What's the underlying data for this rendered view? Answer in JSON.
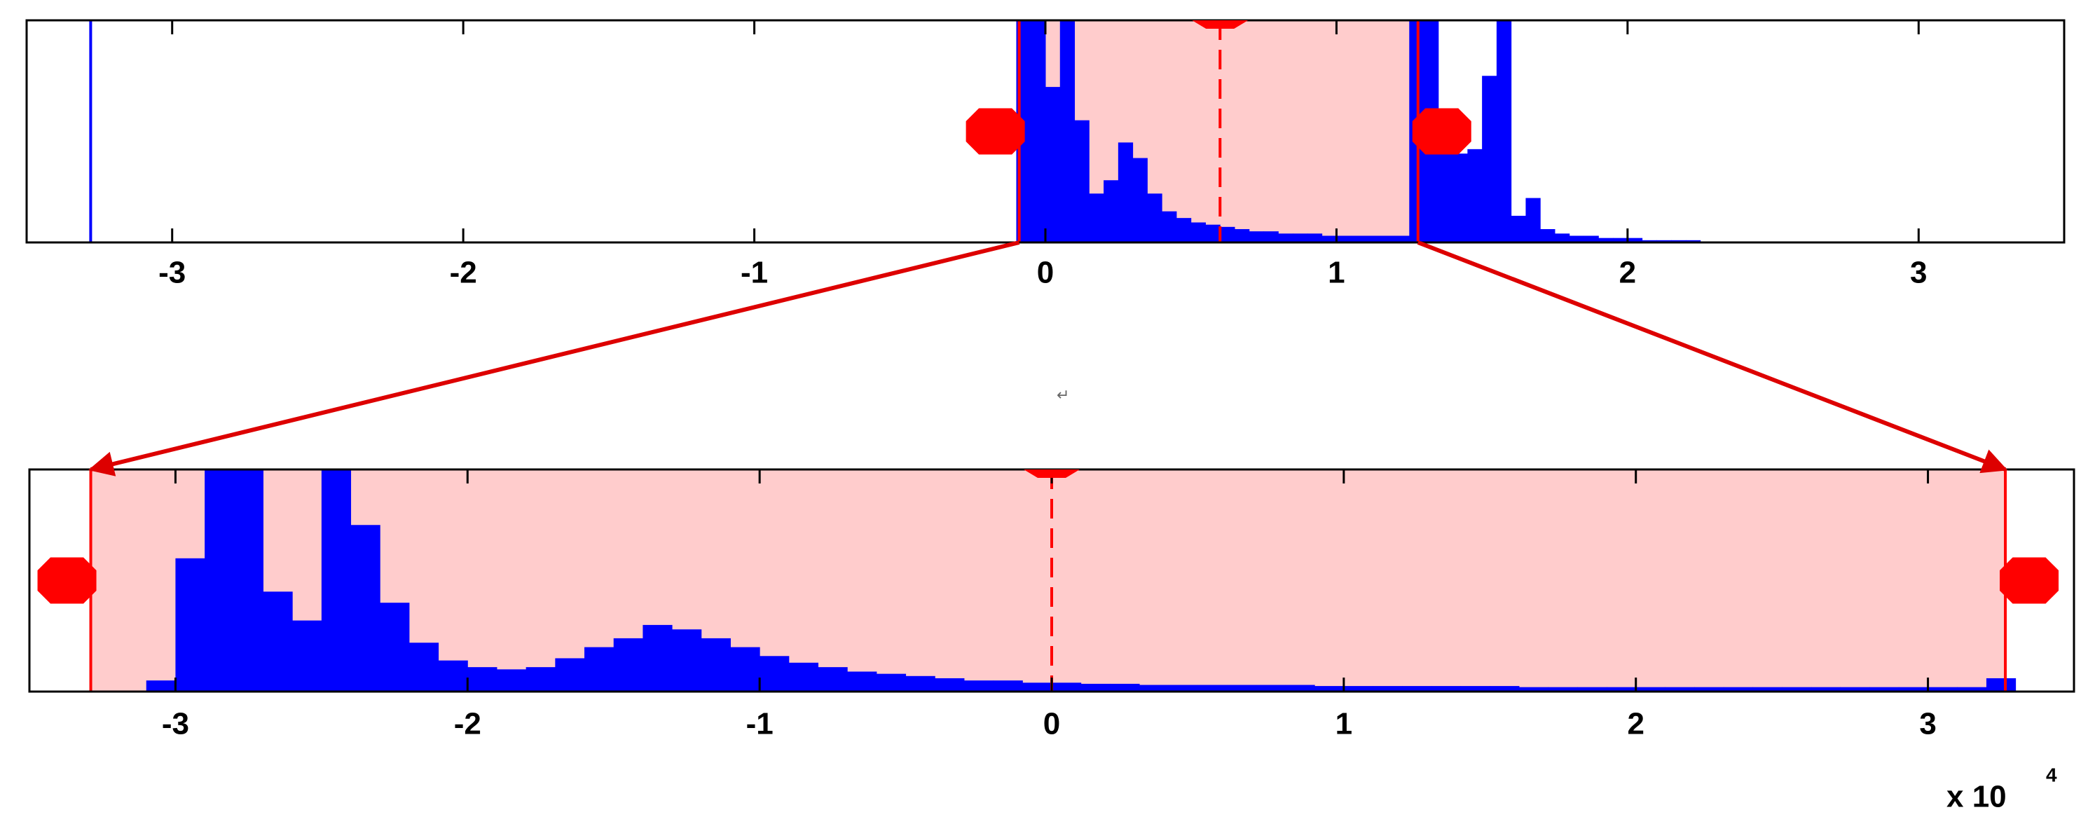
{
  "chart_data": [
    {
      "type": "histogram",
      "color": "#0000ff",
      "xlim": [
        -3.5,
        3.5
      ],
      "ylim": [
        0,
        100
      ],
      "xticks": [
        -3,
        -2,
        -1,
        0,
        1,
        2,
        3
      ],
      "bins": [
        -0.1,
        -0.05,
        0.0,
        0.05,
        0.1,
        0.15,
        0.2,
        0.25,
        0.3,
        0.35,
        0.4,
        0.45,
        0.5,
        0.55,
        0.6,
        0.65,
        0.7,
        0.75,
        0.8,
        0.85,
        0.9,
        0.95,
        1.0,
        1.05,
        1.1,
        1.15,
        1.2,
        1.25,
        1.3,
        1.35,
        1.4,
        1.45,
        1.5,
        1.55,
        1.6,
        1.65,
        1.7,
        1.75,
        1.8,
        1.85,
        1.9,
        1.95,
        2.0,
        2.05,
        2.1,
        2.15,
        2.2,
        2.25
      ],
      "values": [
        100,
        100,
        70,
        100,
        55,
        22,
        28,
        45,
        38,
        22,
        14,
        11,
        9,
        8,
        7,
        6,
        5,
        5,
        4,
        4,
        4,
        3,
        3,
        3,
        3,
        3,
        3,
        100,
        100,
        45,
        40,
        42,
        75,
        100,
        12,
        20,
        6,
        4,
        3,
        3,
        2,
        2,
        2,
        1,
        1,
        1,
        1
      ],
      "spikes": {
        "x": [
          -3.28
        ],
        "values": [
          100
        ]
      },
      "selection": {
        "range": [
          -0.09,
          1.28
        ],
        "center": 0.6,
        "color": "#ff0000",
        "fill": "#ffcccc"
      }
    },
    {
      "type": "histogram",
      "color": "#0000ff",
      "xlim": [
        -3.5,
        3.5
      ],
      "ylim": [
        0,
        100
      ],
      "xticks": [
        -3,
        -2,
        -1,
        0,
        1,
        2,
        3
      ],
      "bins": [
        -3.1,
        -3.0,
        -2.9,
        -2.8,
        -2.7,
        -2.6,
        -2.5,
        -2.4,
        -2.3,
        -2.2,
        -2.1,
        -2.0,
        -1.9,
        -1.8,
        -1.7,
        -1.6,
        -1.5,
        -1.4,
        -1.3,
        -1.2,
        -1.1,
        -1.0,
        -0.9,
        -0.8,
        -0.7,
        -0.6,
        -0.5,
        -0.4,
        -0.3,
        -0.2,
        -0.1,
        0.0,
        0.1,
        0.2,
        0.3,
        0.4,
        0.5,
        0.6,
        0.7,
        0.8,
        0.9,
        1.0,
        1.1,
        1.2,
        1.3,
        1.4,
        1.5,
        1.6,
        1.7,
        1.8,
        1.9,
        2.0,
        2.1,
        2.2,
        2.3,
        2.4,
        2.5,
        2.6,
        2.7,
        2.8,
        2.9,
        3.0,
        3.1,
        3.2,
        3.3
      ],
      "values": [
        5,
        60,
        100,
        100,
        45,
        32,
        100,
        75,
        40,
        22,
        14,
        11,
        10,
        11,
        15,
        20,
        24,
        30,
        28,
        24,
        20,
        16,
        13,
        11,
        9,
        8,
        7,
        6,
        5,
        5,
        4,
        4,
        3.5,
        3.5,
        3,
        3,
        3,
        3,
        3,
        3,
        2.5,
        2.5,
        2.5,
        2.5,
        2.5,
        2.5,
        2.5,
        2,
        2,
        2,
        2,
        2,
        2,
        2,
        2,
        2,
        2,
        2,
        2,
        2,
        2,
        2,
        2,
        6
      ],
      "selection": {
        "range": [
          -3.29,
          3.265
        ],
        "center": 0,
        "color": "#ff0000",
        "fill": "#ffcccc"
      },
      "x_multiplier": {
        "base": "x 10",
        "exponent": "4"
      }
    }
  ],
  "paragraph_mark": "↵"
}
